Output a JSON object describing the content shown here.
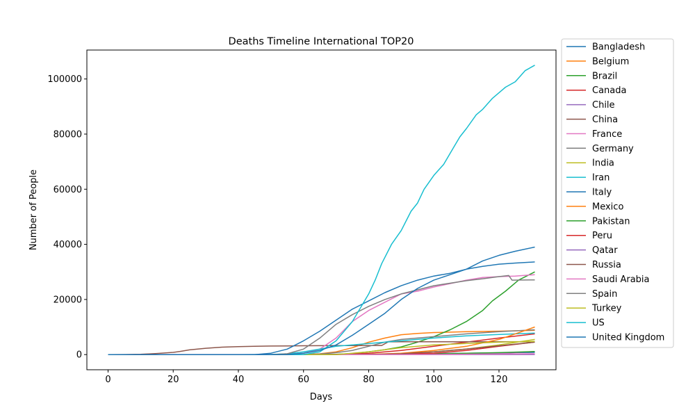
{
  "chart_data": {
    "type": "line",
    "title": "Deaths Timeline International TOP20",
    "xlabel": "Days",
    "ylabel": "Number of People",
    "xlim": [
      -6.5,
      137.5
    ],
    "ylim": [
      -5500,
      110500
    ],
    "xticks": [
      0,
      20,
      40,
      60,
      80,
      100,
      120
    ],
    "yticks": [
      0,
      20000,
      40000,
      60000,
      80000,
      100000
    ],
    "grid": false,
    "legend_position": "outside-right",
    "series": [
      {
        "name": "Bangladesh",
        "color": "#1f77b4",
        "x": [
          0,
          60,
          70,
          80,
          90,
          100,
          110,
          120,
          131
        ],
        "y": [
          0,
          0,
          20,
          100,
          200,
          350,
          500,
          650,
          800
        ]
      },
      {
        "name": "Belgium",
        "color": "#ff7f0e",
        "x": [
          0,
          50,
          60,
          65,
          70,
          75,
          80,
          85,
          90,
          95,
          100,
          110,
          120,
          131
        ],
        "y": [
          0,
          0,
          50,
          300,
          1000,
          2500,
          4500,
          6000,
          7200,
          7700,
          8000,
          8300,
          8500,
          8800
        ]
      },
      {
        "name": "Brazil",
        "color": "#2ca02c",
        "x": [
          0,
          60,
          70,
          75,
          80,
          85,
          90,
          95,
          100,
          105,
          110,
          115,
          118,
          122,
          126,
          131
        ],
        "y": [
          0,
          0,
          100,
          400,
          1000,
          1800,
          2800,
          4500,
          6500,
          9000,
          12000,
          16000,
          19500,
          23000,
          27000,
          30000
        ]
      },
      {
        "name": "Canada",
        "color": "#d62728",
        "x": [
          0,
          60,
          70,
          75,
          80,
          90,
          100,
          110,
          120,
          131
        ],
        "y": [
          0,
          0,
          50,
          200,
          500,
          1500,
          3000,
          4500,
          6000,
          7500
        ]
      },
      {
        "name": "Chile",
        "color": "#9467bd",
        "x": [
          0,
          70,
          80,
          90,
          100,
          110,
          120,
          131
        ],
        "y": [
          0,
          0,
          50,
          100,
          150,
          250,
          400,
          1100
        ]
      },
      {
        "name": "China",
        "color": "#8c564b",
        "x": [
          0,
          5,
          10,
          15,
          20,
          22,
          25,
          30,
          35,
          40,
          45,
          50,
          55,
          60,
          70,
          80,
          84,
          86,
          90,
          100,
          110,
          120,
          131
        ],
        "y": [
          0,
          20,
          100,
          400,
          800,
          1100,
          1700,
          2300,
          2700,
          2900,
          3000,
          3100,
          3150,
          3200,
          3250,
          3300,
          3300,
          4600,
          4630,
          4630,
          4630,
          4630,
          4640
        ]
      },
      {
        "name": "France",
        "color": "#e377c2",
        "x": [
          0,
          50,
          55,
          60,
          65,
          70,
          75,
          80,
          85,
          90,
          95,
          100,
          110,
          115,
          120,
          125,
          131
        ],
        "y": [
          0,
          0,
          100,
          500,
          2000,
          6000,
          12000,
          16000,
          19000,
          22000,
          23000,
          24500,
          27000,
          28000,
          28300,
          28500,
          29000
        ]
      },
      {
        "name": "Germany",
        "color": "#7f7f7f",
        "x": [
          0,
          60,
          65,
          70,
          75,
          80,
          85,
          90,
          100,
          110,
          120,
          131
        ],
        "y": [
          0,
          0,
          200,
          700,
          1500,
          3000,
          4500,
          5500,
          6500,
          7500,
          8300,
          9000
        ]
      },
      {
        "name": "India",
        "color": "#bcbd22",
        "x": [
          0,
          70,
          80,
          90,
          100,
          110,
          120,
          131
        ],
        "y": [
          0,
          0,
          100,
          400,
          1000,
          2000,
          3500,
          5500
        ]
      },
      {
        "name": "Iran",
        "color": "#17becf",
        "x": [
          0,
          40,
          50,
          55,
          60,
          65,
          70,
          75,
          80,
          90,
          100,
          110,
          120,
          131
        ],
        "y": [
          0,
          0,
          50,
          300,
          1000,
          2000,
          3000,
          3500,
          4000,
          5000,
          6000,
          6800,
          7300,
          7800
        ]
      },
      {
        "name": "Italy",
        "color": "#1f77b4",
        "x": [
          0,
          45,
          50,
          55,
          60,
          65,
          70,
          75,
          80,
          85,
          90,
          95,
          100,
          105,
          110,
          115,
          120,
          125,
          131
        ],
        "y": [
          0,
          0,
          500,
          2000,
          5000,
          8500,
          12500,
          16500,
          19500,
          22500,
          25000,
          27000,
          28500,
          29500,
          31000,
          32000,
          32800,
          33200,
          33600
        ]
      },
      {
        "name": "Mexico",
        "color": "#ff7f0e",
        "x": [
          0,
          70,
          80,
          90,
          100,
          110,
          120,
          125,
          131
        ],
        "y": [
          0,
          0,
          100,
          500,
          1500,
          3000,
          5500,
          7500,
          10000
        ]
      },
      {
        "name": "Pakistan",
        "color": "#2ca02c",
        "x": [
          0,
          70,
          80,
          90,
          100,
          110,
          120,
          131
        ],
        "y": [
          0,
          0,
          50,
          150,
          300,
          500,
          700,
          1100
        ]
      },
      {
        "name": "Peru",
        "color": "#d62728",
        "x": [
          0,
          70,
          80,
          90,
          100,
          110,
          120,
          131
        ],
        "y": [
          0,
          0,
          50,
          200,
          500,
          1500,
          3000,
          4500
        ]
      },
      {
        "name": "Qatar",
        "color": "#9467bd",
        "x": [
          0,
          131
        ],
        "y": [
          0,
          20
        ]
      },
      {
        "name": "Russia",
        "color": "#8c564b",
        "x": [
          0,
          70,
          80,
          90,
          100,
          110,
          120,
          131
        ],
        "y": [
          0,
          0,
          50,
          300,
          1000,
          2000,
          3200,
          4500
        ]
      },
      {
        "name": "Saudi Arabia",
        "color": "#e377c2",
        "x": [
          0,
          80,
          100,
          120,
          131
        ],
        "y": [
          0,
          0,
          50,
          200,
          300
        ]
      },
      {
        "name": "Spain",
        "color": "#7f7f7f",
        "x": [
          0,
          50,
          55,
          60,
          65,
          70,
          75,
          80,
          85,
          90,
          95,
          100,
          110,
          115,
          120,
          123,
          124,
          131
        ],
        "y": [
          0,
          0,
          300,
          2000,
          6000,
          11000,
          14500,
          17500,
          20000,
          22000,
          23500,
          25000,
          26800,
          27500,
          28300,
          28700,
          27000,
          27100
        ]
      },
      {
        "name": "Turkey",
        "color": "#bcbd22",
        "x": [
          0,
          70,
          75,
          80,
          90,
          100,
          110,
          120,
          131
        ],
        "y": [
          0,
          0,
          500,
          1000,
          2500,
          3500,
          4000,
          4500,
          4800
        ]
      },
      {
        "name": "US",
        "color": "#17becf",
        "x": [
          0,
          60,
          65,
          70,
          75,
          80,
          82,
          84,
          87,
          90,
          93,
          95,
          97,
          100,
          103,
          106,
          108,
          110,
          113,
          115,
          118,
          122,
          125,
          128,
          131
        ],
        "y": [
          0,
          0,
          1000,
          5000,
          12000,
          22000,
          27000,
          33000,
          40000,
          45000,
          52000,
          55000,
          60000,
          65000,
          69000,
          75000,
          79000,
          82000,
          87000,
          89000,
          93000,
          97000,
          99000,
          103000,
          105000
        ]
      },
      {
        "name": "United Kingdom",
        "color": "#1f77b4",
        "x": [
          0,
          55,
          60,
          65,
          70,
          75,
          80,
          85,
          90,
          95,
          100,
          105,
          110,
          115,
          120,
          125,
          131
        ],
        "y": [
          0,
          0,
          500,
          1500,
          3500,
          7000,
          11000,
          15000,
          20000,
          24000,
          27000,
          29000,
          31000,
          34000,
          36000,
          37500,
          39000
        ]
      }
    ]
  }
}
